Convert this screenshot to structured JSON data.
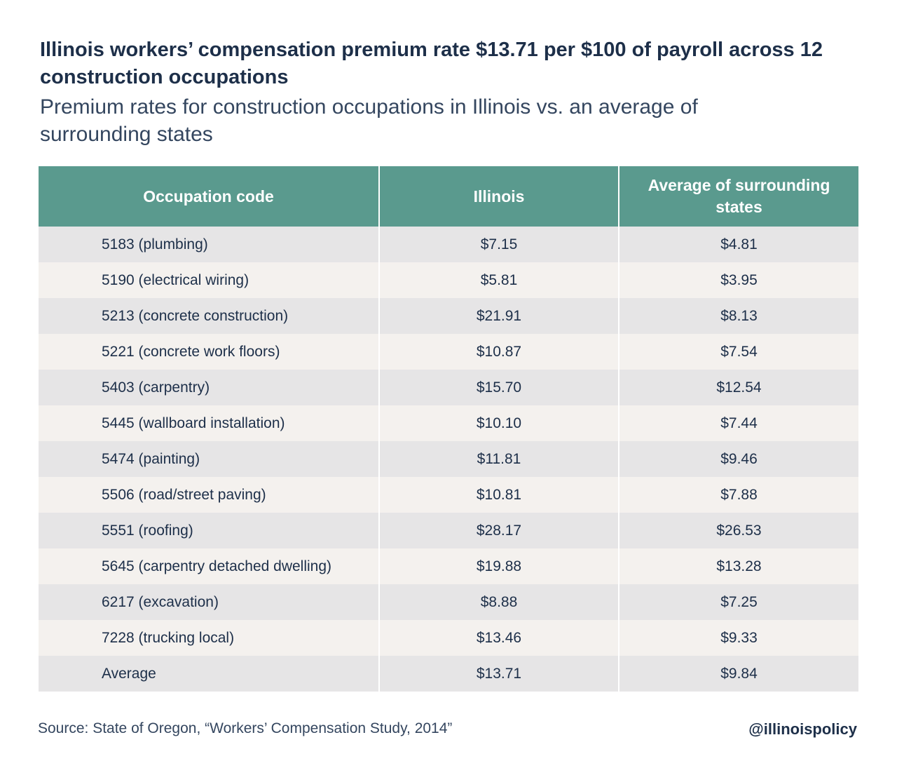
{
  "chart_data": {
    "type": "table",
    "title": "Illinois workers’ compensation premium rate $13.71 per $100 of payroll across 12 construction occupations",
    "subtitle": "Premium rates for construction occupations in Illinois vs. an average of surrounding states",
    "columns": [
      "Occupation code",
      "Illinois",
      "Average of surrounding states"
    ],
    "rows": [
      [
        "5183 (plumbing)",
        "$7.15",
        "$4.81"
      ],
      [
        "5190 (electrical wiring)",
        "$5.81",
        "$3.95"
      ],
      [
        "5213 (concrete construction)",
        "$21.91",
        "$8.13"
      ],
      [
        "5221 (concrete work floors)",
        "$10.87",
        "$7.54"
      ],
      [
        "5403 (carpentry)",
        "$15.70",
        "$12.54"
      ],
      [
        "5445 (wallboard installation)",
        "$10.10",
        "$7.44"
      ],
      [
        "5474 (painting)",
        "$11.81",
        "$9.46"
      ],
      [
        "5506 (road/street paving)",
        "$10.81",
        "$7.88"
      ],
      [
        "5551 (roofing)",
        "$28.17",
        "$26.53"
      ],
      [
        "5645 (carpentry detached dwelling)",
        "$19.88",
        "$13.28"
      ],
      [
        "6217 (excavation)",
        "$8.88",
        "$7.25"
      ],
      [
        "7228 (trucking local)",
        "$13.46",
        "$9.33"
      ],
      [
        "Average",
        "$13.71",
        "$9.84"
      ]
    ],
    "source": "Source: State of Oregon, “Workers’ Compensation Study, 2014”",
    "credit": "@illinoispolicy"
  },
  "colors": {
    "header_bg": "#5a9a8e",
    "row_odd": "#e6e5e6",
    "row_even": "#f4f1ee",
    "text": "#1d2f49"
  }
}
